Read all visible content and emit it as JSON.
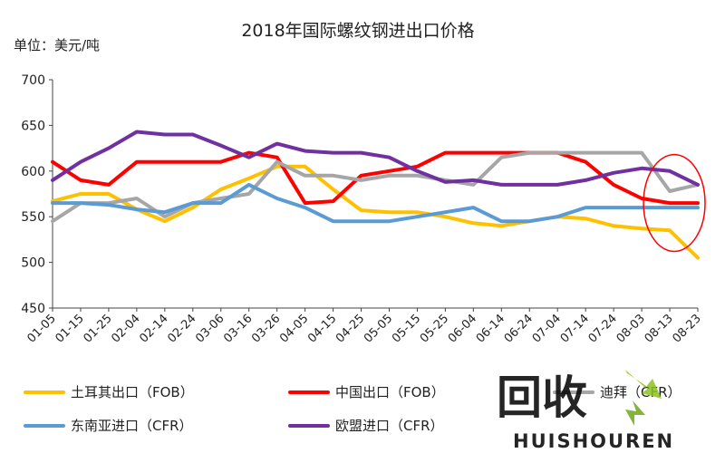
{
  "chart_data": {
    "type": "line",
    "title": "2018年国际螺纹钢进出口价格",
    "ylabel": "单位：美元/吨",
    "xlabel": "",
    "ylim": [
      450,
      700
    ],
    "yticks": [
      450,
      500,
      550,
      600,
      650,
      700
    ],
    "grid": false,
    "legend_position": "bottom",
    "x": [
      "01-05",
      "01-15",
      "01-25",
      "02-04",
      "02-14",
      "02-24",
      "03-06",
      "03-16",
      "03-26",
      "04-05",
      "04-15",
      "04-25",
      "05-05",
      "05-15",
      "05-25",
      "06-04",
      "06-14",
      "06-24",
      "07-04",
      "07-14",
      "07-24",
      "08-03",
      "08-13",
      "08-23"
    ],
    "series": [
      {
        "name": "土耳其出口（FOB）",
        "color": "#FFC000",
        "values": [
          567,
          575,
          575,
          558,
          545,
          560,
          580,
          592,
          605,
          605,
          580,
          557,
          555,
          555,
          550,
          543,
          540,
          545,
          550,
          548,
          540,
          537,
          535,
          505
        ]
      },
      {
        "name": "中国出口（FOB）",
        "color": "#FF0000",
        "values": [
          610,
          590,
          585,
          610,
          610,
          610,
          610,
          620,
          615,
          565,
          567,
          595,
          600,
          605,
          620,
          620,
          620,
          620,
          620,
          610,
          585,
          570,
          565,
          565
        ]
      },
      {
        "name": "迪拜（CFR）",
        "color": "#A6A6A6",
        "values": [
          545,
          565,
          565,
          570,
          550,
          565,
          570,
          575,
          610,
          595,
          595,
          590,
          595,
          595,
          590,
          585,
          615,
          620,
          620,
          620,
          620,
          620,
          578,
          585
        ]
      },
      {
        "name": "东南亚进口（CFR）",
        "color": "#5B9BD5",
        "values": [
          565,
          565,
          563,
          558,
          555,
          565,
          565,
          585,
          570,
          560,
          545,
          545,
          545,
          550,
          555,
          560,
          545,
          545,
          550,
          560,
          560,
          560,
          560,
          560
        ]
      },
      {
        "name": "欧盟进口（CFR）",
        "color": "#7030A0",
        "values": [
          590,
          610,
          625,
          643,
          640,
          640,
          628,
          615,
          630,
          622,
          620,
          620,
          615,
          600,
          588,
          590,
          585,
          585,
          585,
          590,
          598,
          603,
          600,
          585
        ]
      }
    ],
    "legend": {
      "items": [
        "土耳其出口（FOB）",
        "中国出口（FOB）",
        "迪拜（CFR）",
        "东南亚进口（CFR）",
        "欧盟进口（CFR）"
      ]
    },
    "annotation": {
      "type": "ellipse",
      "color": "#FF0000",
      "x_range": [
        "08-03",
        "08-23"
      ],
      "y_range": [
        512,
        618
      ]
    }
  },
  "logo": {
    "chars": "回收",
    "text": "HUISHOUREN",
    "color": "#8DC21F"
  }
}
